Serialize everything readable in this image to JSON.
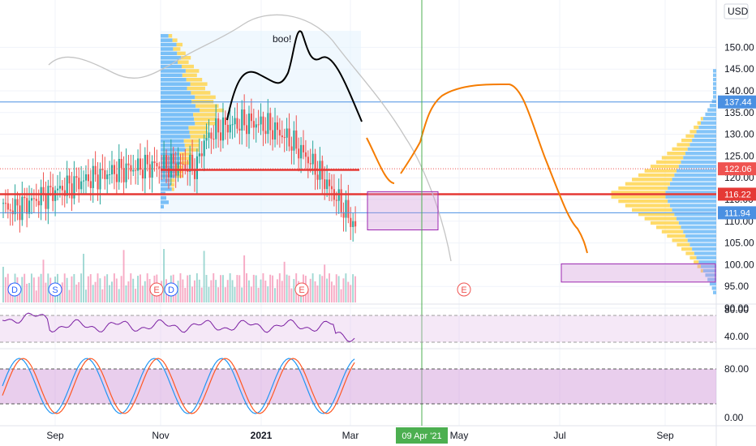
{
  "chart_data": {
    "type": "candlestick",
    "currency": "USD",
    "price_axis": {
      "ylim": [
        90,
        150
      ],
      "ticks": [
        "150.00",
        "145.00",
        "140.00",
        "135.00",
        "130.00",
        "125.00",
        "120.00",
        "115.00",
        "110.00",
        "105.00",
        "100.00",
        "95.00",
        "90.00"
      ]
    },
    "oscillator_axis": {
      "ticks": [
        "80.00",
        "40.00"
      ]
    },
    "stochastic_axis": {
      "ticks": [
        "80.00",
        "0.00"
      ]
    },
    "x_ticks": [
      "Sep",
      "Nov",
      "2021",
      "Mar",
      "May",
      "Jul",
      "Sep"
    ],
    "crosshair_date": "09 Apr '21",
    "price_labels": [
      {
        "value": "137.44",
        "color": "#4a90e2"
      },
      {
        "value": "122.06",
        "color": "#ef5350"
      },
      {
        "value": "116.22",
        "color": "#e53935"
      },
      {
        "value": "111.94",
        "color": "#4a90e2"
      }
    ],
    "annotation": "boo!",
    "event_markers": [
      {
        "label": "D",
        "kind": "dividend"
      },
      {
        "label": "S",
        "kind": "split"
      },
      {
        "label": "E",
        "kind": "earnings"
      },
      {
        "label": "D",
        "kind": "dividend"
      },
      {
        "label": "E",
        "kind": "earnings"
      },
      {
        "label": "E",
        "kind": "earnings"
      }
    ],
    "horizontal_levels": [
      137.44,
      122.06,
      116.22,
      111.94
    ],
    "target_boxes": [
      {
        "from": "Mar",
        "to": "Apr",
        "low": 108,
        "high": 116.8
      },
      {
        "from": "Jul",
        "to": "Oct",
        "low": 96,
        "high": 100.2
      }
    ],
    "colors": {
      "up": "#26a69a",
      "down": "#ef5350",
      "projection": "#f57c00",
      "pattern": "#000000",
      "box": "#9c27b0"
    }
  }
}
